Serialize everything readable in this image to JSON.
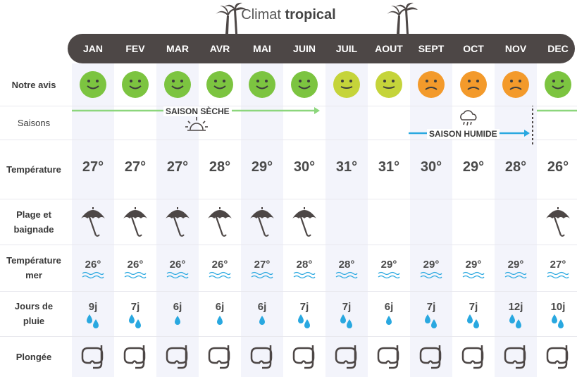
{
  "title": {
    "prefix": "Climat ",
    "emphasis": "tropical"
  },
  "months": [
    "JAN",
    "FEV",
    "MAR",
    "AVR",
    "MAI",
    "JUIN",
    "JUIL",
    "AOUT",
    "SEPT",
    "OCT",
    "NOV",
    "DEC"
  ],
  "row_labels": {
    "avis": "Notre avis",
    "saisons": "Saisons",
    "temperature": "Température",
    "plage_1": "Plage et",
    "plage_2": "baignade",
    "mer_1": "Température",
    "mer_2": "mer",
    "pluie_1": "Jours de",
    "pluie_2": "pluie",
    "plongee": "Plongée"
  },
  "ratings": [
    "good",
    "good",
    "good",
    "good",
    "good",
    "good",
    "ok",
    "ok",
    "bad",
    "bad",
    "bad",
    "good"
  ],
  "rating_colors": {
    "good": "#7cc440",
    "ok": "#c5d43a",
    "bad": "#f39a2b"
  },
  "seasons": {
    "dry_label": "SAISON SÈCHE",
    "wet_label": "SAISON HUMIDE",
    "dry_color": "#8cd67c",
    "wet_color": "#29a8e0"
  },
  "temperatures": [
    "27°",
    "27°",
    "27°",
    "28°",
    "29°",
    "30°",
    "31°",
    "31°",
    "30°",
    "29°",
    "28°",
    "26°"
  ],
  "beach": [
    true,
    true,
    true,
    true,
    true,
    true,
    false,
    false,
    false,
    false,
    false,
    true
  ],
  "sea_temperatures": [
    "26°",
    "26°",
    "26°",
    "26°",
    "27°",
    "28°",
    "28°",
    "29°",
    "29°",
    "29°",
    "29°",
    "27°"
  ],
  "rain_days": [
    "9j",
    "7j",
    "6j",
    "6j",
    "6j",
    "7j",
    "7j",
    "6j",
    "7j",
    "7j",
    "12j",
    "10j"
  ],
  "rain_drops": [
    2,
    2,
    1,
    1,
    1,
    2,
    2,
    1,
    2,
    2,
    2,
    2
  ],
  "diving": [
    true,
    true,
    true,
    true,
    true,
    true,
    true,
    true,
    true,
    true,
    true,
    true
  ]
}
